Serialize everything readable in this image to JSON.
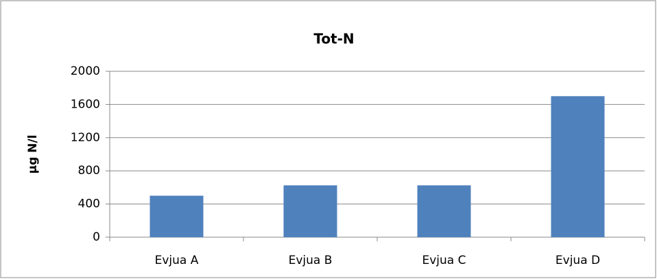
{
  "chart_data": {
    "type": "bar",
    "title": "Tot-N",
    "ylabel": "µg N/l",
    "categories": [
      "Evjua A",
      "Evjua B",
      "Evjua C",
      "Evjua D"
    ],
    "values": [
      500,
      625,
      625,
      1700
    ],
    "color": "#4f81bd",
    "ylim": [
      0,
      2000
    ],
    "yticks": [
      0,
      400,
      800,
      1200,
      1600,
      2000
    ],
    "grid": true
  }
}
